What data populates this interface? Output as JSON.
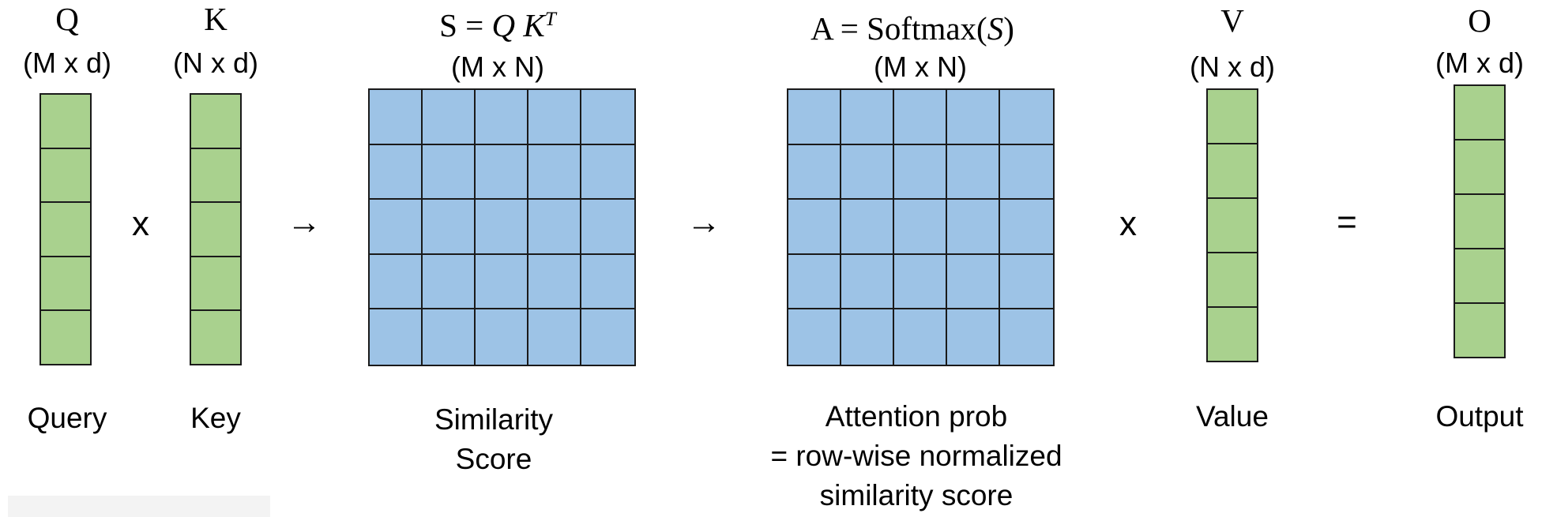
{
  "colors": {
    "vector_fill": "#a9d18e",
    "matrix_fill": "#9dc3e6",
    "border": "#1a1a1a"
  },
  "query": {
    "symbol": "Q",
    "dims": "(M x d)",
    "caption": "Query",
    "cells": 5
  },
  "key": {
    "symbol": "K",
    "dims": "(N x d)",
    "caption": "Key",
    "cells": 5
  },
  "similarity": {
    "formula_lhs": "S = ",
    "formula_q": "Q",
    "formula_k": "K",
    "formula_sup": "T",
    "dims": "(M x N)",
    "caption_line1": "Similarity",
    "caption_line2": "Score",
    "rows": 5,
    "cols": 5
  },
  "attention": {
    "formula_lhs": "A = Softmax(",
    "formula_arg": "S",
    "formula_rhs": ")",
    "dims": "(M x N)",
    "caption_line1": "Attention prob",
    "caption_line2": "= row-wise normalized",
    "caption_line3": "similarity score",
    "rows": 5,
    "cols": 5
  },
  "value": {
    "symbol": "V",
    "dims": "(N x d)",
    "caption": "Value",
    "cells": 5
  },
  "output": {
    "symbol": "O",
    "dims": "(M x d)",
    "caption": "Output",
    "cells": 5
  },
  "operators": {
    "times_1": "x",
    "arrow_1": "→",
    "arrow_2": "→",
    "times_2": "x",
    "equals": "="
  }
}
